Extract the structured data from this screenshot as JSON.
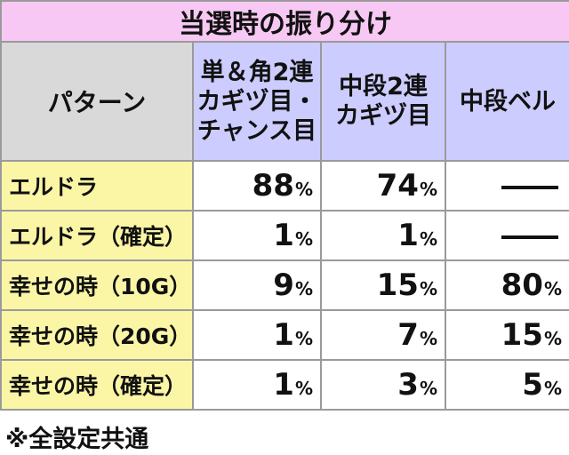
{
  "title": "当選時の振り分け",
  "headers": {
    "pattern": "パターン",
    "col1_lines": [
      "単＆角2連",
      "カギヅ目・",
      "チャンス目"
    ],
    "col2_lines": [
      "中段2連",
      "カギヅ目"
    ],
    "col3_lines": [
      "中段ベル"
    ]
  },
  "rows": [
    {
      "label": "エルドラ",
      "v1": "88",
      "v2": "74",
      "v3": ""
    },
    {
      "label": "エルドラ（確定）",
      "v1": "1",
      "v2": "1",
      "v3": ""
    },
    {
      "label": "幸せの時（10G）",
      "v1": "9",
      "v2": "15",
      "v3": "80"
    },
    {
      "label": "幸せの時（20G）",
      "v1": "1",
      "v2": "7",
      "v3": "15"
    },
    {
      "label": "幸せの時（確定）",
      "v1": "1",
      "v2": "3",
      "v3": "5"
    }
  ],
  "percent_sign": "%",
  "note": "※全設定共通",
  "colors": {
    "title_bg": "#f7c8f3",
    "pattern_header_bg": "#d9d9d9",
    "column_header_bg": "#ccccff",
    "row_label_bg": "#fbf6a6",
    "border": "#9a9a9a"
  }
}
